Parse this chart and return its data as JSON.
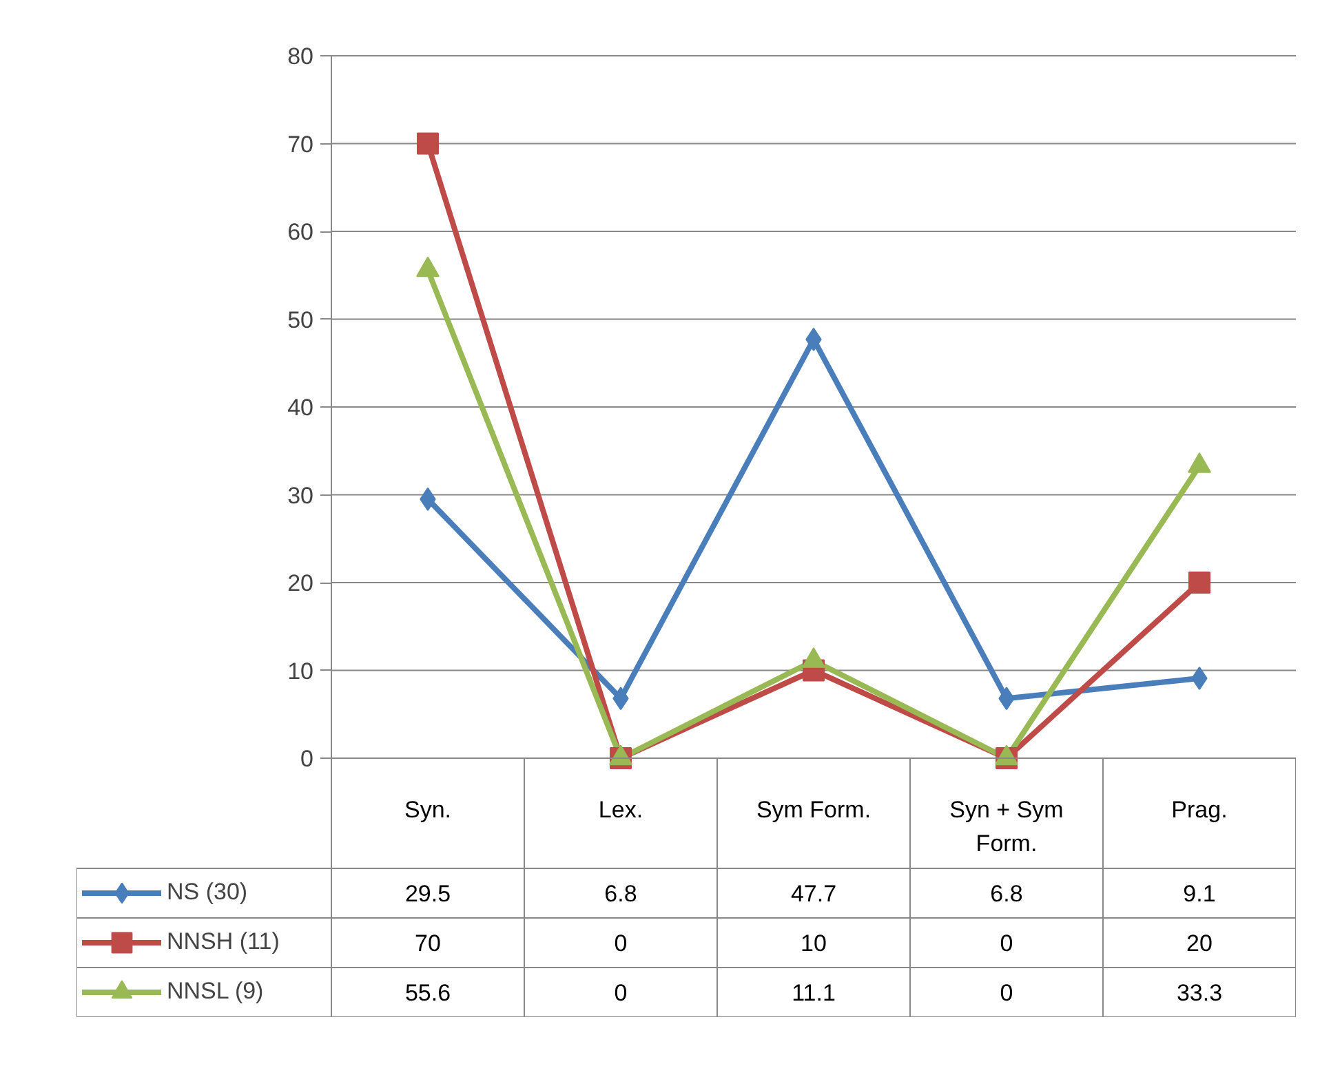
{
  "chart_data": {
    "type": "line",
    "categories": [
      "Syn.",
      "Lex.",
      "Sym Form.",
      "Syn + Sym Form.",
      "Prag."
    ],
    "series": [
      {
        "name": "NS (30)",
        "color": "#4a7ebb",
        "marker": "diamond",
        "values": [
          29.5,
          6.8,
          47.7,
          6.8,
          9.1
        ]
      },
      {
        "name": "NNSH (11)",
        "color": "#be4b48",
        "marker": "square",
        "values": [
          70,
          0,
          10,
          0,
          20
        ]
      },
      {
        "name": "NNSL (9)",
        "color": "#98b954",
        "marker": "triangle",
        "values": [
          55.6,
          0,
          11.1,
          0,
          33.3
        ]
      }
    ],
    "ylim": [
      0,
      80
    ],
    "yticks": [
      0,
      10,
      20,
      30,
      40,
      50,
      60,
      70,
      80
    ],
    "grid": "y",
    "legend": "bottom",
    "data_labels": true
  }
}
